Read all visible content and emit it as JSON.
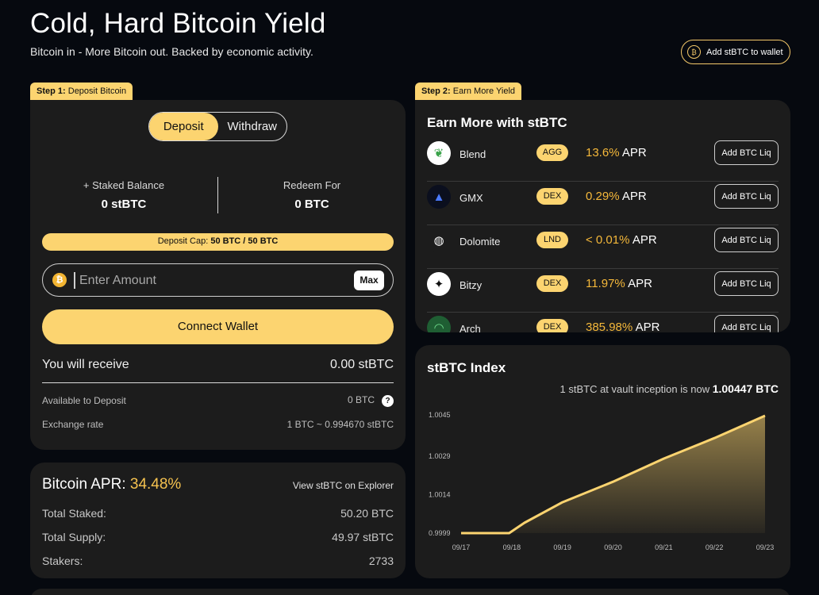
{
  "header": {
    "title": "Cold, Hard Bitcoin Yield",
    "subtitle": "Bitcoin in - More Bitcoin out. Backed by economic activity.",
    "wallet_button": "Add stBTC to wallet"
  },
  "step1": {
    "prefix": "Step 1:",
    "label": "Deposit Bitcoin",
    "tabs": {
      "deposit": "Deposit",
      "withdraw": "Withdraw"
    },
    "staked_label": "+  Staked Balance",
    "staked_value": "0 stBTC",
    "redeem_label": "Redeem For",
    "redeem_value": "0 BTC",
    "cap_prefix": "Deposit Cap:",
    "cap_value": "50 BTC / 50 BTC",
    "amount_placeholder": "Enter Amount",
    "max_label": "Max",
    "connect_label": "Connect Wallet",
    "receive_label": "You will receive",
    "receive_value": "0.00 stBTC",
    "available_label": "Available to Deposit",
    "available_value": "0 BTC",
    "help_glyph": "?",
    "rate_label": "Exchange rate",
    "rate_value": "1 BTC ~ 0.994670 stBTC"
  },
  "apr_card": {
    "title_label": "Bitcoin APR:",
    "apr_value": "34.48%",
    "explorer_link": "View stBTC on Explorer",
    "rows": [
      {
        "label": "Total Staked:",
        "value": "50.20 BTC"
      },
      {
        "label": "Total Supply:",
        "value": "49.97 stBTC"
      },
      {
        "label": "Stakers:",
        "value": "2733"
      }
    ]
  },
  "step2": {
    "prefix": "Step 2:",
    "label": "Earn More Yield",
    "title": "Earn More with stBTC",
    "apr_suffix": "APR",
    "liq_label": "Add BTC Liq",
    "protocols": [
      {
        "name": "Blend",
        "type": "AGG",
        "apr": "13.6%",
        "icon": "blend-icon",
        "logo_bg": "#ffffff",
        "logo_fg": "#3aa34a",
        "glyph": "❦"
      },
      {
        "name": "GMX",
        "type": "DEX",
        "apr": "0.29%",
        "icon": "gmx-icon",
        "logo_bg": "#0b0f1e",
        "logo_fg": "#4b7bff",
        "glyph": "▲"
      },
      {
        "name": "Dolomite",
        "type": "LND",
        "apr": "< 0.01%",
        "icon": "dolomite-icon",
        "logo_bg": "#1c1c1c",
        "logo_fg": "#ffffff",
        "glyph": "◍"
      },
      {
        "name": "Bitzy",
        "type": "DEX",
        "apr": "11.97%",
        "icon": "bitzy-icon",
        "logo_bg": "#ffffff",
        "logo_fg": "#111111",
        "glyph": "✦"
      },
      {
        "name": "Arch",
        "type": "DEX",
        "apr": "385.98%",
        "icon": "arch-icon",
        "logo_bg": "#1f5e33",
        "logo_fg": "#6fdc8c",
        "glyph": "◠"
      }
    ]
  },
  "index_card": {
    "title": "stBTC Index",
    "note_prefix": "1 stBTC at vault inception is now",
    "note_value": "1.00447 BTC"
  },
  "chart_data": {
    "type": "area",
    "x": [
      "09/17",
      "09/18",
      "09/18",
      "09/19",
      "09/20",
      "09/21",
      "09/22",
      "09/23"
    ],
    "x_ticks": [
      "09/17",
      "09/18",
      "09/19",
      "09/20",
      "09/21",
      "09/22",
      "09/23"
    ],
    "y_ticks": [
      "0.9999",
      "1.0014",
      "1.0029",
      "1.0045"
    ],
    "points": [
      {
        "x": 0,
        "y": 0.9999
      },
      {
        "x": 0.95,
        "y": 0.9999
      },
      {
        "x": 1.25,
        "y": 1.0003
      },
      {
        "x": 2,
        "y": 1.0011
      },
      {
        "x": 3,
        "y": 1.0019
      },
      {
        "x": 4,
        "y": 1.0028
      },
      {
        "x": 5,
        "y": 1.0036
      },
      {
        "x": 6,
        "y": 1.00447
      }
    ],
    "ylim": [
      0.9999,
      1.0045
    ],
    "line_color": "#fcd470",
    "grid": false
  },
  "colors": {
    "accent": "#fcd470",
    "apr": "#f5b83a",
    "card": "#1c1c1c",
    "bg": "#06090f"
  }
}
